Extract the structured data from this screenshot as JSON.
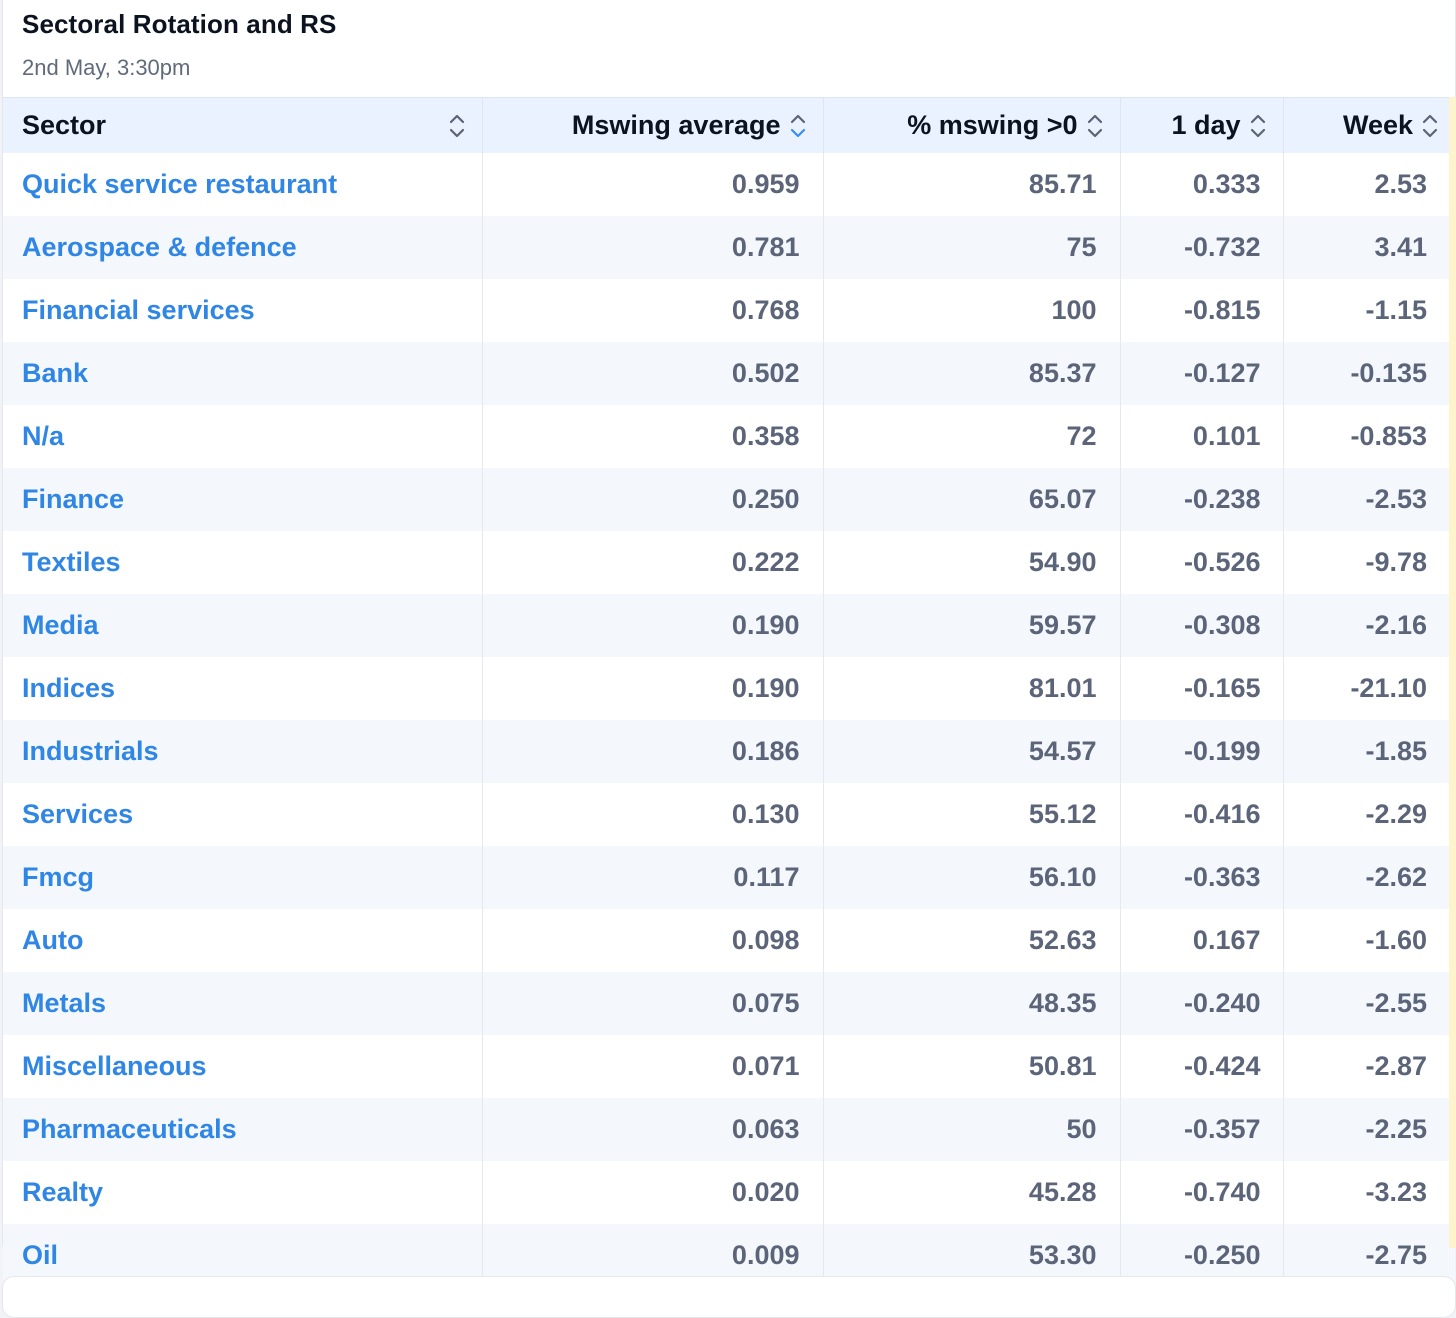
{
  "header": {
    "title": "Sectoral Rotation and RS",
    "subtitle": "2nd May, 3:30pm"
  },
  "table": {
    "columns": [
      "Sector",
      "Mswing average",
      "% mswing >0",
      "1 day",
      "Week"
    ],
    "sorted_column": "Mswing average",
    "rows": [
      [
        "Quick service restaurant",
        "0.959",
        "85.71",
        "0.333",
        "2.53"
      ],
      [
        "Aerospace & defence",
        "0.781",
        "75",
        "-0.732",
        "3.41"
      ],
      [
        "Financial services",
        "0.768",
        "100",
        "-0.815",
        "-1.15"
      ],
      [
        "Bank",
        "0.502",
        "85.37",
        "-0.127",
        "-0.135"
      ],
      [
        "N/a",
        "0.358",
        "72",
        "0.101",
        "-0.853"
      ],
      [
        "Finance",
        "0.250",
        "65.07",
        "-0.238",
        "-2.53"
      ],
      [
        "Textiles",
        "0.222",
        "54.90",
        "-0.526",
        "-9.78"
      ],
      [
        "Media",
        "0.190",
        "59.57",
        "-0.308",
        "-2.16"
      ],
      [
        "Indices",
        "0.190",
        "81.01",
        "-0.165",
        "-21.10"
      ],
      [
        "Industrials",
        "0.186",
        "54.57",
        "-0.199",
        "-1.85"
      ],
      [
        "Services",
        "0.130",
        "55.12",
        "-0.416",
        "-2.29"
      ],
      [
        "Fmcg",
        "0.117",
        "56.10",
        "-0.363",
        "-2.62"
      ],
      [
        "Auto",
        "0.098",
        "52.63",
        "0.167",
        "-1.60"
      ],
      [
        "Metals",
        "0.075",
        "48.35",
        "-0.240",
        "-2.55"
      ],
      [
        "Miscellaneous",
        "0.071",
        "50.81",
        "-0.424",
        "-2.87"
      ],
      [
        "Pharmaceuticals",
        "0.063",
        "50",
        "-0.357",
        "-2.25"
      ],
      [
        "Realty",
        "0.020",
        "45.28",
        "-0.740",
        "-3.23"
      ],
      [
        "Oil",
        "0.009",
        "53.30",
        "-0.250",
        "-2.75"
      ]
    ]
  },
  "colors": {
    "header_bg": "#e9f2fe",
    "link": "#2f86e4",
    "number": "#5b6478",
    "sort_active": "#3b8ded",
    "sort_inactive": "#5b6478",
    "row_alt": "#f4f8fd"
  },
  "icons": {
    "sort": "sort-updown-icon"
  }
}
